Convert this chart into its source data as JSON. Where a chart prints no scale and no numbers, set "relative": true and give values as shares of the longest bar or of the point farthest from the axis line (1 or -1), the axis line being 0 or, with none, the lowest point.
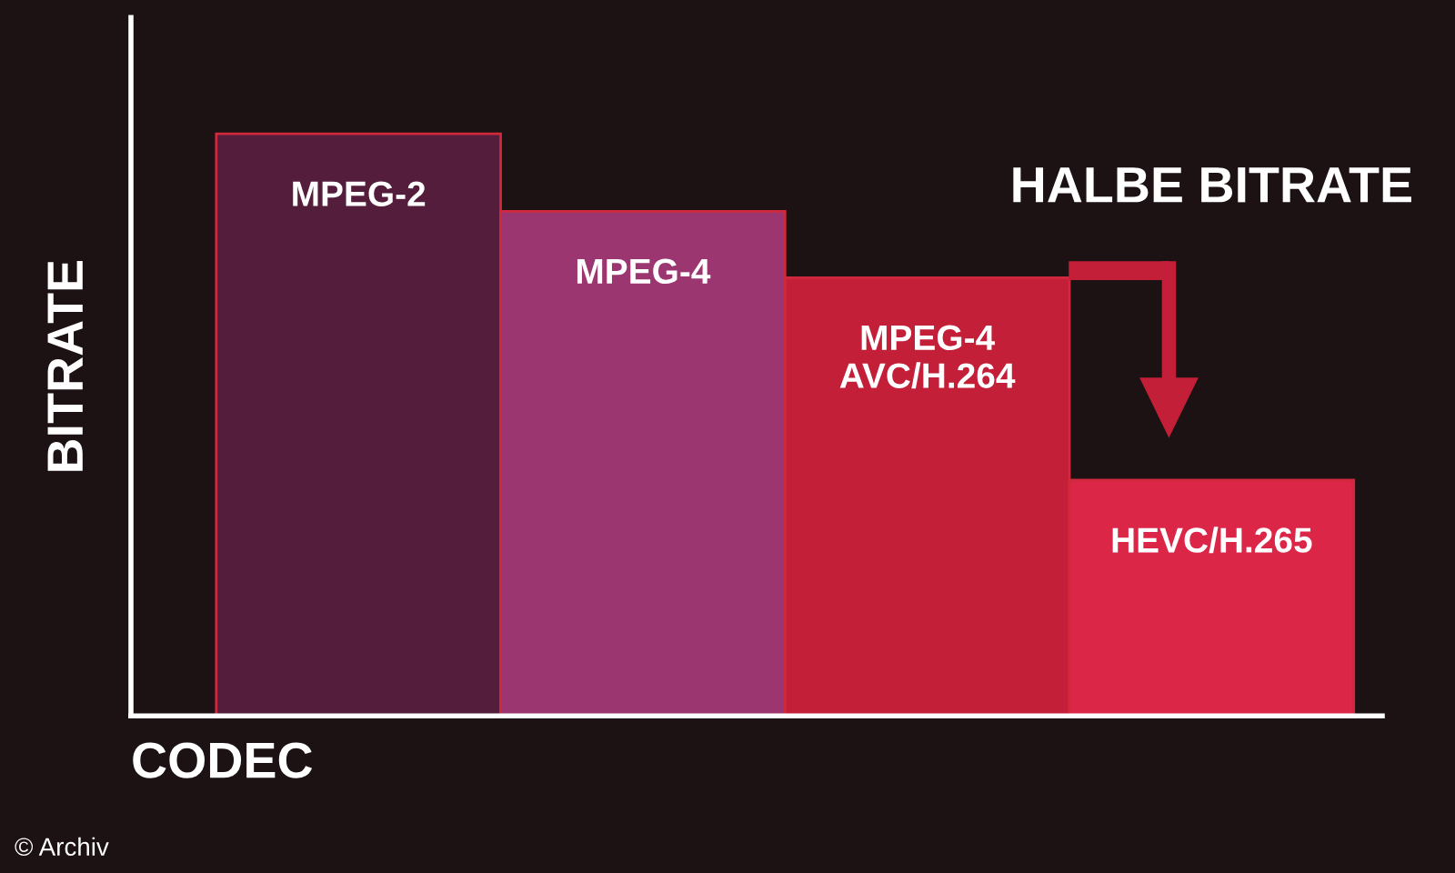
{
  "chart_data": {
    "type": "bar",
    "relative": true,
    "xlabel": "CODEC",
    "ylabel": "BITRATE",
    "categories": [
      "MPEG-2",
      "MPEG-4",
      "MPEG-4\nAVC/H.264",
      "HEVC/H.265"
    ],
    "values": [
      1,
      0.867,
      0.753,
      0.405
    ],
    "colors": [
      "#541d3b",
      "#9c3670",
      "#c41f38",
      "#dc2648"
    ],
    "annotations": [
      "HALBE BITRATE",
      "© Archiv"
    ],
    "grid": false
  }
}
